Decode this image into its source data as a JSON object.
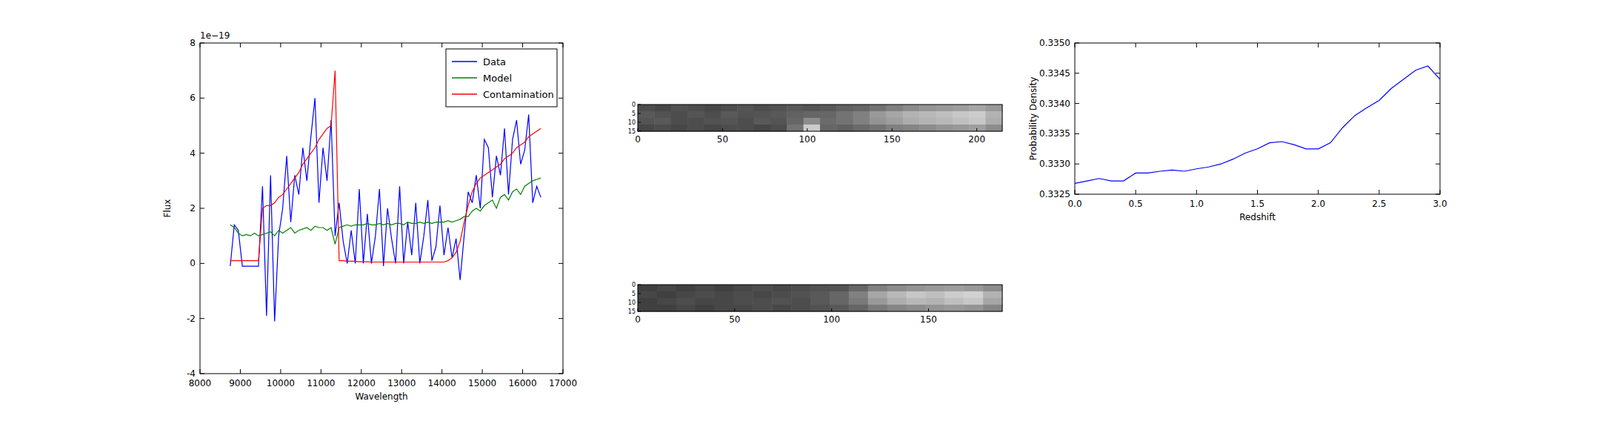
{
  "chart_data": [
    {
      "type": "line",
      "xlabel": "Wavelength",
      "ylabel": "Flux",
      "annotation": "1e−19",
      "x": [
        8750,
        8850,
        8950,
        9050,
        9150,
        9250,
        9350,
        9450,
        9550,
        9650,
        9750,
        9850,
        9950,
        10050,
        10150,
        10250,
        10350,
        10450,
        10550,
        10650,
        10750,
        10850,
        10950,
        11050,
        11150,
        11250,
        11350,
        11450,
        11550,
        11650,
        11750,
        11850,
        11950,
        12050,
        12150,
        12250,
        12350,
        12450,
        12550,
        12650,
        12750,
        12850,
        12950,
        13050,
        13150,
        13250,
        13350,
        13450,
        13550,
        13650,
        13750,
        13850,
        13950,
        14050,
        14150,
        14250,
        14350,
        14450,
        14550,
        14650,
        14750,
        14850,
        14950,
        15050,
        15150,
        15250,
        15350,
        15450,
        15550,
        15650,
        15750,
        15850,
        15950,
        16050,
        16150,
        16250,
        16350,
        16450
      ],
      "series": [
        {
          "name": "Data",
          "color": "#0000ff",
          "values": [
            -0.1,
            1.4,
            1.2,
            -0.1,
            -0.1,
            -0.1,
            -0.1,
            -0.1,
            2.8,
            -1.9,
            3.2,
            -2.1,
            1.0,
            2.0,
            3.9,
            1.5,
            3.2,
            2.5,
            4.2,
            3.0,
            4.6,
            6.0,
            2.2,
            4.2,
            3.0,
            5.2,
            1.0,
            2.2,
            0.8,
            0.0,
            1.2,
            0.0,
            2.7,
            0.0,
            1.8,
            0.0,
            1.0,
            2.7,
            -0.1,
            2.0,
            0.9,
            0.0,
            2.8,
            0.0,
            1.5,
            0.3,
            2.2,
            0.0,
            1.0,
            2.3,
            0.1,
            0.6,
            2.1,
            0.3,
            1.3,
            0.2,
            0.9,
            -0.6,
            1.0,
            2.6,
            2.2,
            3.2,
            2.0,
            4.5,
            4.2,
            2.4,
            3.9,
            3.2,
            4.9,
            2.5,
            4.5,
            5.2,
            3.6,
            4.1,
            5.4,
            2.2,
            2.8,
            2.4
          ]
        },
        {
          "name": "Model",
          "color": "#008000",
          "values": [
            1.4,
            1.3,
            1.1,
            1.0,
            1.05,
            1.0,
            1.1,
            1.0,
            1.05,
            1.1,
            1.15,
            1.0,
            1.2,
            1.1,
            1.2,
            1.3,
            1.1,
            1.2,
            1.25,
            1.3,
            1.2,
            1.35,
            1.3,
            1.3,
            1.2,
            1.3,
            0.7,
            1.3,
            1.35,
            1.4,
            1.35,
            1.4,
            1.4,
            1.4,
            1.45,
            1.4,
            1.4,
            1.45,
            1.4,
            1.45,
            1.4,
            1.45,
            1.45,
            1.4,
            1.5,
            1.45,
            1.45,
            1.5,
            1.45,
            1.5,
            1.45,
            1.5,
            1.5,
            1.5,
            1.55,
            1.5,
            1.55,
            1.6,
            1.7,
            1.7,
            1.9,
            2.0,
            1.9,
            2.1,
            2.2,
            2.3,
            2.0,
            2.4,
            2.5,
            2.3,
            2.6,
            2.7,
            2.5,
            2.8,
            2.9,
            3.0,
            3.05,
            3.1
          ]
        },
        {
          "name": "Contamination",
          "color": "#ff0000",
          "values": [
            0.1,
            0.1,
            0.1,
            0.1,
            0.1,
            0.1,
            0.1,
            0.1,
            2.0,
            2.1,
            2.1,
            2.2,
            2.4,
            2.5,
            2.7,
            2.9,
            3.1,
            3.3,
            3.6,
            3.8,
            4.0,
            4.2,
            4.5,
            4.7,
            4.9,
            5.0,
            7.0,
            0.1,
            0.1,
            0.08,
            0.08,
            0.08,
            0.06,
            0.06,
            0.06,
            0.05,
            0.05,
            0.05,
            0.05,
            0.05,
            0.05,
            0.05,
            0.05,
            0.05,
            0.05,
            0.05,
            0.05,
            0.05,
            0.05,
            0.05,
            0.05,
            0.05,
            0.05,
            0.05,
            0.1,
            0.2,
            0.4,
            0.8,
            1.5,
            2.1,
            2.6,
            2.9,
            3.1,
            3.2,
            3.3,
            3.4,
            3.5,
            3.6,
            3.8,
            3.9,
            4.0,
            4.2,
            4.3,
            4.4,
            4.6,
            4.7,
            4.8,
            4.9
          ]
        }
      ],
      "xlim": [
        8000,
        17000
      ],
      "xticks": [
        8000,
        9000,
        10000,
        11000,
        12000,
        13000,
        14000,
        15000,
        16000,
        17000
      ],
      "ylim": [
        -4,
        8
      ],
      "yticks": [
        -4,
        -2,
        0,
        2,
        4,
        6,
        8
      ],
      "legend": "upper right"
    },
    {
      "type": "heatmap",
      "cells": [
        [
          0.3,
          0.28,
          0.32,
          0.3,
          0.28,
          0.3,
          0.33,
          0.3,
          0.32,
          0.35,
          0.33,
          0.35,
          0.38,
          0.4,
          0.45,
          0.5,
          0.55,
          0.58,
          0.6,
          0.62,
          0.65,
          0.6
        ],
        [
          0.35,
          0.32,
          0.3,
          0.33,
          0.3,
          0.35,
          0.32,
          0.33,
          0.35,
          0.38,
          0.4,
          0.4,
          0.45,
          0.5,
          0.6,
          0.65,
          0.7,
          0.72,
          0.75,
          0.78,
          0.8,
          0.7
        ],
        [
          0.33,
          0.35,
          0.3,
          0.3,
          0.32,
          0.33,
          0.3,
          0.35,
          0.33,
          0.4,
          0.55,
          0.42,
          0.45,
          0.5,
          0.58,
          0.62,
          0.68,
          0.7,
          0.72,
          0.75,
          0.78,
          0.68
        ],
        [
          0.28,
          0.3,
          0.28,
          0.3,
          0.28,
          0.3,
          0.3,
          0.28,
          0.3,
          0.45,
          0.8,
          0.4,
          0.38,
          0.42,
          0.45,
          0.5,
          0.52,
          0.55,
          0.58,
          0.6,
          0.62,
          0.55
        ]
      ],
      "xlim": [
        0,
        215
      ],
      "xticks": [
        0,
        50,
        100,
        150,
        200
      ],
      "ylim": [
        0,
        15
      ],
      "yticks": [
        0,
        5,
        10,
        15
      ]
    },
    {
      "type": "heatmap",
      "cells": [
        [
          0.25,
          0.28,
          0.25,
          0.28,
          0.25,
          0.28,
          0.3,
          0.28,
          0.3,
          0.32,
          0.33,
          0.4,
          0.5,
          0.55,
          0.58,
          0.6,
          0.62,
          0.6,
          0.55
        ],
        [
          0.28,
          0.25,
          0.28,
          0.3,
          0.28,
          0.3,
          0.28,
          0.3,
          0.32,
          0.35,
          0.4,
          0.5,
          0.65,
          0.72,
          0.78,
          0.75,
          0.8,
          0.82,
          0.7
        ],
        [
          0.25,
          0.28,
          0.3,
          0.28,
          0.28,
          0.3,
          0.3,
          0.32,
          0.3,
          0.35,
          0.4,
          0.48,
          0.6,
          0.68,
          0.72,
          0.7,
          0.75,
          0.78,
          0.65
        ],
        [
          0.25,
          0.25,
          0.28,
          0.25,
          0.28,
          0.28,
          0.3,
          0.28,
          0.3,
          0.32,
          0.35,
          0.4,
          0.48,
          0.52,
          0.55,
          0.58,
          0.6,
          0.58,
          0.52
        ]
      ],
      "xlim": [
        0,
        188
      ],
      "xticks": [
        0,
        50,
        100,
        150
      ],
      "ylim": [
        0,
        15
      ],
      "yticks": [
        0,
        5,
        10,
        15
      ]
    },
    {
      "type": "line",
      "xlabel": "Redshift",
      "ylabel": "Probability Density",
      "x": [
        0,
        0.1,
        0.2,
        0.3,
        0.4,
        0.5,
        0.6,
        0.7,
        0.8,
        0.9,
        1.0,
        1.1,
        1.2,
        1.3,
        1.4,
        1.5,
        1.6,
        1.7,
        1.8,
        1.9,
        2.0,
        2.1,
        2.2,
        2.3,
        2.4,
        2.5,
        2.6,
        2.7,
        2.8,
        2.9,
        3.0
      ],
      "series": [
        {
          "color": "#0000ff",
          "values": [
            0.33268,
            0.33272,
            0.33276,
            0.33272,
            0.33272,
            0.33285,
            0.33285,
            0.33288,
            0.3329,
            0.33288,
            0.33292,
            0.33295,
            0.333,
            0.33308,
            0.33318,
            0.33325,
            0.33335,
            0.33337,
            0.33332,
            0.33325,
            0.33325,
            0.33335,
            0.3336,
            0.3338,
            0.33393,
            0.33405,
            0.33425,
            0.3344,
            0.33455,
            0.33462,
            0.3344
          ]
        }
      ],
      "xlim": [
        0,
        3
      ],
      "xticks": [
        {
          "value": 0,
          "label": "0.0"
        },
        {
          "value": 0.5,
          "label": "0.5"
        },
        {
          "value": 1,
          "label": "1.0"
        },
        {
          "value": 1.5,
          "label": "1.5"
        },
        {
          "value": 2,
          "label": "2.0"
        },
        {
          "value": 2.5,
          "label": "2.5"
        },
        {
          "value": 3,
          "label": "3.0"
        }
      ],
      "ylim": [
        0.3325,
        0.335
      ],
      "yticks": [
        {
          "value": 0.3325,
          "label": "0.3325"
        },
        {
          "value": 0.333,
          "label": "0.3330"
        },
        {
          "value": 0.3335,
          "label": "0.3335"
        },
        {
          "value": 0.334,
          "label": "0.3340"
        },
        {
          "value": 0.3345,
          "label": "0.3345"
        },
        {
          "value": 0.335,
          "label": "0.3350"
        }
      ]
    }
  ]
}
